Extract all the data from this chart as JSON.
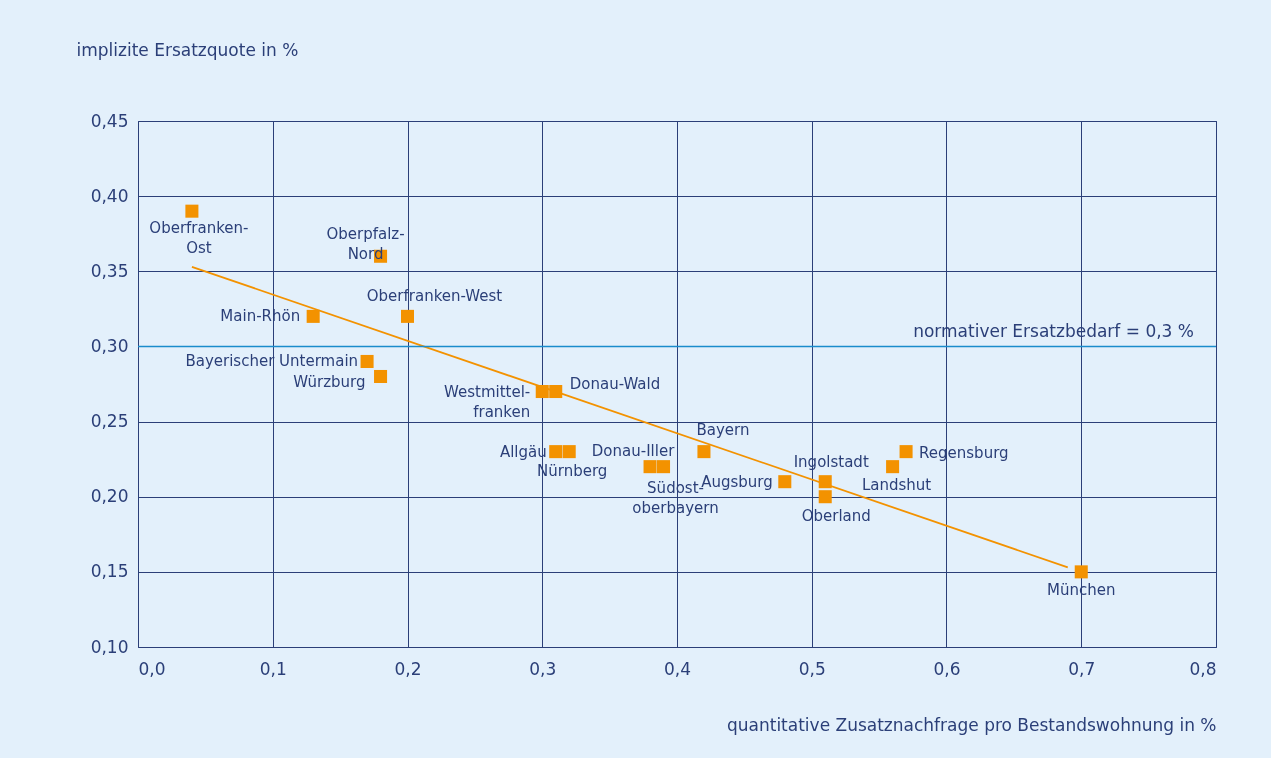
{
  "chart_data": {
    "type": "scatter",
    "xlabel": "quantitative Zusatznachfrage pro Bestandswohnung in %",
    "ylabel": "implizite Ersatzquote in %",
    "xlim": [
      0,
      0.8
    ],
    "ylim": [
      0.1,
      0.45
    ],
    "xticks": [
      {
        "value": 0,
        "label": "0,0"
      },
      {
        "value": 0.1,
        "label": "0,1"
      },
      {
        "value": 0.2,
        "label": "0,2"
      },
      {
        "value": 0.3,
        "label": "0,3"
      },
      {
        "value": 0.4,
        "label": "0,4"
      },
      {
        "value": 0.5,
        "label": "0,5"
      },
      {
        "value": 0.6,
        "label": "0,6"
      },
      {
        "value": 0.7,
        "label": "0,7"
      },
      {
        "value": 0.8,
        "label": "0,8"
      }
    ],
    "yticks": [
      {
        "value": 0.1,
        "label": "0,10"
      },
      {
        "value": 0.15,
        "label": "0,15"
      },
      {
        "value": 0.2,
        "label": "0,20"
      },
      {
        "value": 0.25,
        "label": "0,25"
      },
      {
        "value": 0.3,
        "label": "0,30"
      },
      {
        "value": 0.35,
        "label": "0,35"
      },
      {
        "value": 0.4,
        "label": "0,40"
      },
      {
        "value": 0.45,
        "label": "0,45"
      }
    ],
    "grid": true,
    "series": [
      {
        "color": "#f39200",
        "marker": "square",
        "x": [
          0.04,
          0.18,
          0.2,
          0.13,
          0.17,
          0.18,
          0.3,
          0.31,
          0.31,
          0.32,
          0.38,
          0.39,
          0.42,
          0.48,
          0.51,
          0.51,
          0.56,
          0.57,
          0.7
        ],
        "values": [
          0.39,
          0.36,
          0.32,
          0.32,
          0.29,
          0.28,
          0.27,
          0.27,
          0.23,
          0.23,
          0.22,
          0.22,
          0.23,
          0.21,
          0.21,
          0.2,
          0.22,
          0.23,
          0.15
        ]
      },
      {
        "type": "line",
        "color": "#f39200",
        "marker": "none",
        "x": [
          0.04,
          0.69
        ],
        "values": [
          0.353,
          0.153
        ]
      }
    ],
    "ref_lines": [
      {
        "axis": "y",
        "value": 0.3,
        "label": "normativer Ersatzbedarf = 0,3 %",
        "color": "#1a8ccc"
      }
    ],
    "annotations": [
      {
        "text": "Oberfranken-\nOst",
        "x": 0.04,
        "y": 0.39
      },
      {
        "text": "Oberpfalz-\nNord",
        "x": 0.18,
        "y": 0.36
      },
      {
        "text": "Oberfranken-West",
        "x": 0.2,
        "y": 0.32
      },
      {
        "text": "Main-Rhön",
        "x": 0.13,
        "y": 0.32
      },
      {
        "text": "Bayerischer Untermain",
        "x": 0.17,
        "y": 0.29
      },
      {
        "text": "Würzburg",
        "x": 0.18,
        "y": 0.28
      },
      {
        "text": "Westmittel-\nfranken",
        "x": 0.3,
        "y": 0.27
      },
      {
        "text": "Donau-Wald",
        "x": 0.31,
        "y": 0.27
      },
      {
        "text": "Allgäu",
        "x": 0.31,
        "y": 0.23
      },
      {
        "text": "Nürnberg",
        "x": 0.32,
        "y": 0.23
      },
      {
        "text": "Donau-Iller",
        "x": 0.38,
        "y": 0.22
      },
      {
        "text": "Südost-\noberbayern",
        "x": 0.39,
        "y": 0.22
      },
      {
        "text": "Bayern",
        "x": 0.42,
        "y": 0.23
      },
      {
        "text": "Augsburg",
        "x": 0.48,
        "y": 0.21
      },
      {
        "text": "Ingolstadt",
        "x": 0.51,
        "y": 0.21
      },
      {
        "text": "Oberland",
        "x": 0.51,
        "y": 0.2
      },
      {
        "text": "Landshut",
        "x": 0.56,
        "y": 0.22
      },
      {
        "text": "Regensburg",
        "x": 0.57,
        "y": 0.23
      },
      {
        "text": "München",
        "x": 0.7,
        "y": 0.15
      }
    ]
  }
}
